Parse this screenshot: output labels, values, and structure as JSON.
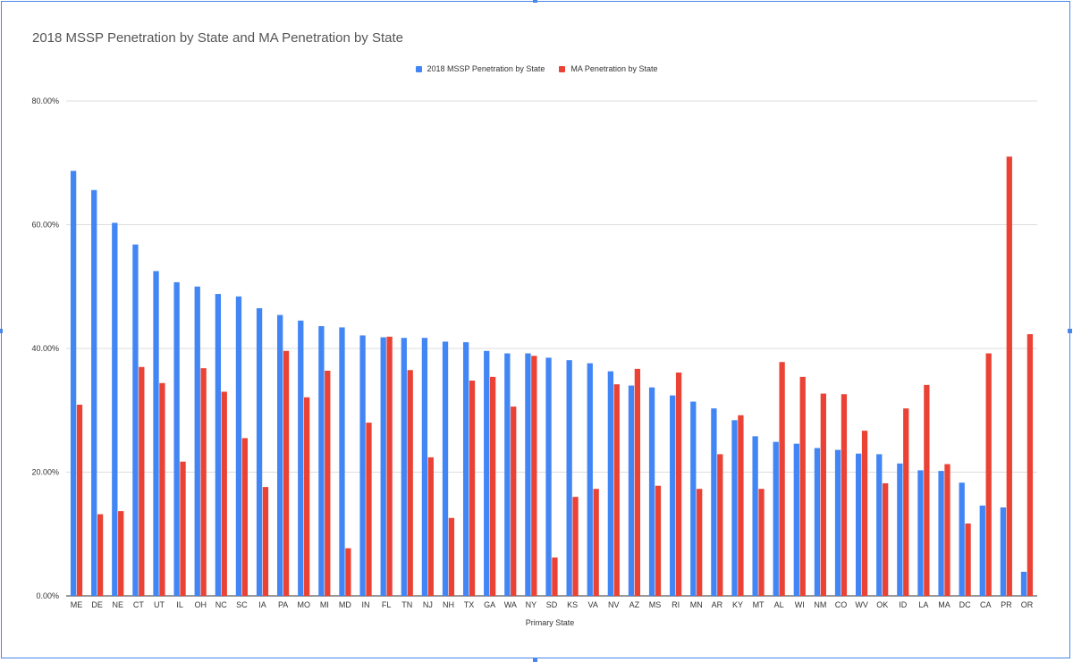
{
  "chart_data": {
    "type": "bar",
    "title": "2018 MSSP Penetration by State and MA Penetration by State",
    "xlabel": "Primary State",
    "ylabel": "",
    "ylim": [
      0,
      80
    ],
    "y_ticks": [
      "0.00%",
      "20.00%",
      "40.00%",
      "60.00%",
      "80.00%"
    ],
    "y_tick_values": [
      0,
      20,
      40,
      60,
      80
    ],
    "grid": true,
    "legend_position": "top",
    "categories": [
      "ME",
      "DE",
      "NE",
      "CT",
      "UT",
      "IL",
      "OH",
      "NC",
      "SC",
      "IA",
      "PA",
      "MO",
      "MI",
      "MD",
      "IN",
      "FL",
      "TN",
      "NJ",
      "NH",
      "TX",
      "GA",
      "WA",
      "NY",
      "SD",
      "KS",
      "VA",
      "NV",
      "AZ",
      "MS",
      "RI",
      "MN",
      "AR",
      "KY",
      "MT",
      "AL",
      "WI",
      "NM",
      "CO",
      "WV",
      "OK",
      "ID",
      "LA",
      "MA",
      "DC",
      "CA",
      "PR",
      "OR"
    ],
    "series": [
      {
        "name": "2018 MSSP Penetration by State",
        "color": "#4285f4",
        "values": [
          68.7,
          65.6,
          60.3,
          56.8,
          52.5,
          50.7,
          50.0,
          48.8,
          48.4,
          46.5,
          45.4,
          44.5,
          43.6,
          43.4,
          42.1,
          41.8,
          41.7,
          41.7,
          41.1,
          41.0,
          39.6,
          39.2,
          39.2,
          38.5,
          38.1,
          37.6,
          36.3,
          34.0,
          33.7,
          32.4,
          31.4,
          30.3,
          28.4,
          25.8,
          24.9,
          24.6,
          23.9,
          23.6,
          23.0,
          22.9,
          21.4,
          20.3,
          20.2,
          18.3,
          14.6,
          14.3,
          3.9
        ]
      },
      {
        "name": "MA Penetration by State",
        "color": "#ea4335",
        "values": [
          30.9,
          13.2,
          13.7,
          37.0,
          34.4,
          21.7,
          36.8,
          33.0,
          25.5,
          17.6,
          39.6,
          32.1,
          36.4,
          7.7,
          28.0,
          41.9,
          36.5,
          22.4,
          12.6,
          34.8,
          35.4,
          30.6,
          38.8,
          6.2,
          16.0,
          17.3,
          34.2,
          36.7,
          17.8,
          36.1,
          17.3,
          22.9,
          29.2,
          17.3,
          37.8,
          35.4,
          32.7,
          32.6,
          26.7,
          18.2,
          30.3,
          34.1,
          21.3,
          11.7,
          39.2,
          71.0,
          42.3
        ]
      }
    ]
  }
}
